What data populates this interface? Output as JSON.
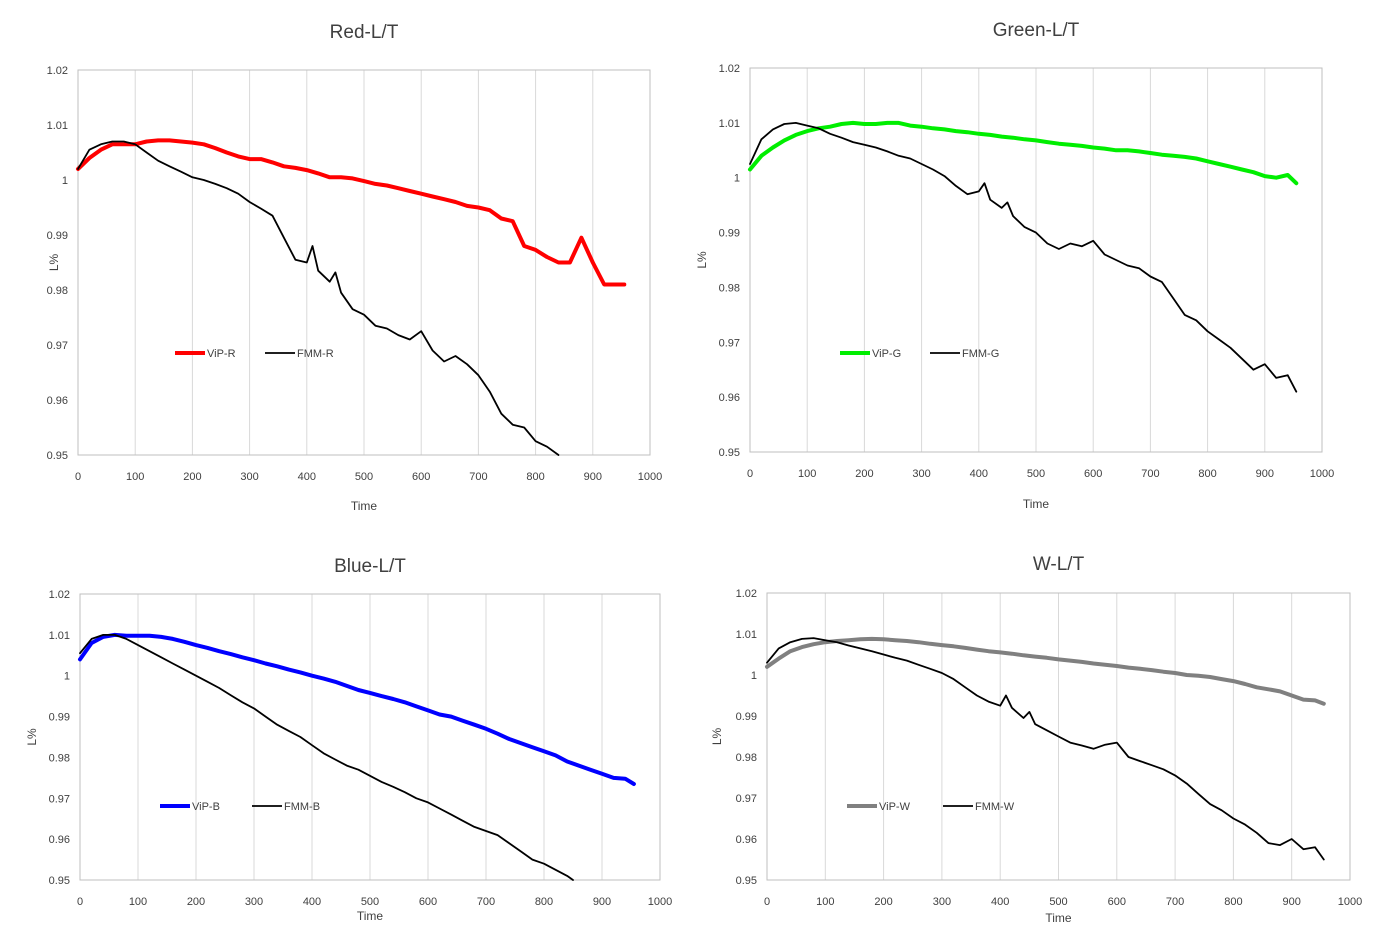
{
  "chart_data": [
    {
      "type": "line",
      "title": "Red-L/T",
      "xlabel": "Time",
      "ylabel": "L%",
      "xlim": [
        0,
        1000
      ],
      "ylim": [
        0.95,
        1.02
      ],
      "x_ticks": [
        "0",
        "100",
        "200",
        "300",
        "400",
        "500",
        "600",
        "700",
        "800",
        "900",
        "1000"
      ],
      "y_ticks": [
        "0.95",
        "0.96",
        "0.97",
        "0.98",
        "0.99",
        "1",
        "1.01",
        "1.02"
      ],
      "grid": "vertical",
      "legend": "inside-lower-left",
      "series": [
        {
          "name": "ViP-R",
          "color": "#ff0000",
          "width": "thick",
          "x": [
            0,
            20,
            40,
            60,
            80,
            100,
            120,
            140,
            160,
            180,
            200,
            220,
            240,
            260,
            280,
            300,
            320,
            340,
            360,
            380,
            400,
            420,
            440,
            460,
            480,
            500,
            520,
            540,
            560,
            580,
            600,
            620,
            640,
            660,
            680,
            700,
            720,
            740,
            760,
            780,
            800,
            820,
            840,
            860,
            880,
            900,
            920,
            940,
            955
          ],
          "y": [
            1.002,
            1.004,
            1.0055,
            1.0065,
            1.0065,
            1.0065,
            1.007,
            1.0072,
            1.0072,
            1.007,
            1.0068,
            1.0065,
            1.0058,
            1.005,
            1.0043,
            1.0038,
            1.0038,
            1.0032,
            1.0025,
            1.0022,
            1.0018,
            1.0012,
            1.0005,
            1.0005,
            1.0003,
            0.9998,
            0.9993,
            0.999,
            0.9985,
            0.998,
            0.9975,
            0.997,
            0.9965,
            0.996,
            0.9953,
            0.995,
            0.9945,
            0.993,
            0.9925,
            0.988,
            0.9873,
            0.986,
            0.985,
            0.985,
            0.9895,
            0.985,
            0.981,
            0.981,
            0.981
          ]
        },
        {
          "name": "FMM-R",
          "color": "#000000",
          "width": "thin",
          "x": [
            0,
            20,
            40,
            60,
            80,
            100,
            120,
            140,
            160,
            180,
            200,
            220,
            240,
            260,
            280,
            300,
            320,
            340,
            360,
            380,
            400,
            410,
            420,
            440,
            450,
            460,
            480,
            500,
            520,
            540,
            560,
            580,
            600,
            620,
            640,
            660,
            680,
            700,
            720,
            740,
            760,
            780,
            800,
            820,
            840
          ],
          "y": [
            1.002,
            1.0055,
            1.0065,
            1.007,
            1.007,
            1.0065,
            1.005,
            1.0035,
            1.0025,
            1.0015,
            1.0005,
            1.0,
            0.9993,
            0.9985,
            0.9975,
            0.996,
            0.9948,
            0.9935,
            0.9895,
            0.9855,
            0.985,
            0.988,
            0.9835,
            0.9815,
            0.9832,
            0.9795,
            0.9765,
            0.9755,
            0.9735,
            0.973,
            0.9718,
            0.971,
            0.9725,
            0.969,
            0.967,
            0.968,
            0.9665,
            0.9645,
            0.9615,
            0.9575,
            0.9555,
            0.955,
            0.9525,
            0.9515,
            0.95
          ]
        }
      ]
    },
    {
      "type": "line",
      "title": "Green-L/T",
      "xlabel": "Time",
      "ylabel": "L%",
      "xlim": [
        0,
        1000
      ],
      "ylim": [
        0.95,
        1.02
      ],
      "x_ticks": [
        "0",
        "100",
        "200",
        "300",
        "400",
        "500",
        "600",
        "700",
        "800",
        "900",
        "1000"
      ],
      "y_ticks": [
        "0.95",
        "0.96",
        "0.97",
        "0.98",
        "0.99",
        "1",
        "1.01",
        "1.02"
      ],
      "grid": "vertical",
      "legend": "inside-lower-left",
      "series": [
        {
          "name": "ViP-G",
          "color": "#00ee00",
          "width": "thick",
          "x": [
            0,
            20,
            40,
            60,
            80,
            100,
            120,
            140,
            160,
            180,
            200,
            220,
            240,
            260,
            280,
            300,
            320,
            340,
            360,
            380,
            400,
            420,
            440,
            460,
            480,
            500,
            520,
            540,
            560,
            580,
            600,
            620,
            640,
            660,
            680,
            700,
            720,
            740,
            760,
            780,
            800,
            820,
            840,
            860,
            880,
            900,
            920,
            940,
            955
          ],
          "y": [
            1.0015,
            1.004,
            1.0055,
            1.0068,
            1.0078,
            1.0085,
            1.009,
            1.0093,
            1.0098,
            1.01,
            1.0098,
            1.0098,
            1.01,
            1.01,
            1.0095,
            1.0093,
            1.009,
            1.0088,
            1.0085,
            1.0083,
            1.008,
            1.0078,
            1.0075,
            1.0073,
            1.007,
            1.0068,
            1.0065,
            1.0062,
            1.006,
            1.0058,
            1.0055,
            1.0053,
            1.005,
            1.005,
            1.0048,
            1.0045,
            1.0042,
            1.004,
            1.0038,
            1.0035,
            1.003,
            1.0025,
            1.002,
            1.0015,
            1.001,
            1.0003,
            1.0,
            1.0005,
            0.999
          ]
        },
        {
          "name": "FMM-G",
          "color": "#000000",
          "width": "thin",
          "x": [
            0,
            20,
            40,
            60,
            80,
            100,
            120,
            140,
            160,
            180,
            200,
            220,
            240,
            260,
            280,
            300,
            320,
            340,
            360,
            380,
            400,
            410,
            420,
            440,
            450,
            460,
            480,
            500,
            520,
            540,
            560,
            580,
            600,
            620,
            640,
            660,
            680,
            700,
            720,
            740,
            760,
            780,
            800,
            820,
            840,
            860,
            880,
            900,
            920,
            940,
            955
          ],
          "y": [
            1.0025,
            1.007,
            1.0088,
            1.0098,
            1.01,
            1.0095,
            1.009,
            1.008,
            1.0073,
            1.0065,
            1.006,
            1.0055,
            1.0048,
            1.004,
            1.0035,
            1.0025,
            1.0015,
            1.0003,
            0.9985,
            0.997,
            0.9975,
            0.999,
            0.996,
            0.9945,
            0.9955,
            0.993,
            0.991,
            0.99,
            0.988,
            0.987,
            0.988,
            0.9875,
            0.9885,
            0.986,
            0.985,
            0.984,
            0.9835,
            0.982,
            0.981,
            0.978,
            0.975,
            0.974,
            0.972,
            0.9705,
            0.969,
            0.967,
            0.965,
            0.966,
            0.9635,
            0.964,
            0.961
          ]
        }
      ]
    },
    {
      "type": "line",
      "title": "Blue-L/T",
      "xlabel": "Time",
      "ylabel": "L%",
      "xlim": [
        0,
        1000
      ],
      "ylim": [
        0.95,
        1.02
      ],
      "x_ticks": [
        "0",
        "100",
        "200",
        "300",
        "400",
        "500",
        "600",
        "700",
        "800",
        "900",
        "1000"
      ],
      "y_ticks": [
        "0.95",
        "0.96",
        "0.97",
        "0.98",
        "0.99",
        "1",
        "1.01",
        "1.02"
      ],
      "grid": "vertical",
      "legend": "inside-lower-left",
      "series": [
        {
          "name": "ViP-B",
          "color": "#0000ff",
          "width": "thick",
          "x": [
            0,
            20,
            40,
            60,
            80,
            100,
            120,
            140,
            160,
            180,
            200,
            220,
            240,
            260,
            280,
            300,
            320,
            340,
            360,
            380,
            400,
            420,
            440,
            460,
            480,
            500,
            520,
            540,
            560,
            580,
            600,
            620,
            640,
            660,
            680,
            700,
            720,
            740,
            760,
            780,
            800,
            820,
            840,
            860,
            880,
            900,
            920,
            940,
            955
          ],
          "y": [
            1.004,
            1.008,
            1.0095,
            1.01,
            1.0098,
            1.0098,
            1.0098,
            1.0095,
            1.009,
            1.0083,
            1.0075,
            1.0068,
            1.006,
            1.0053,
            1.0045,
            1.0038,
            1.003,
            1.0023,
            1.0015,
            1.0008,
            1.0,
            0.9993,
            0.9985,
            0.9975,
            0.9965,
            0.9958,
            0.995,
            0.9943,
            0.9935,
            0.9925,
            0.9915,
            0.9905,
            0.99,
            0.989,
            0.988,
            0.987,
            0.9858,
            0.9845,
            0.9835,
            0.9825,
            0.9815,
            0.9805,
            0.979,
            0.978,
            0.977,
            0.976,
            0.975,
            0.9748,
            0.9735
          ]
        },
        {
          "name": "FMM-B",
          "color": "#000000",
          "width": "thin",
          "x": [
            0,
            20,
            40,
            60,
            80,
            100,
            120,
            140,
            160,
            180,
            200,
            220,
            240,
            260,
            280,
            300,
            320,
            340,
            360,
            380,
            400,
            420,
            440,
            460,
            480,
            500,
            520,
            540,
            560,
            580,
            600,
            620,
            640,
            660,
            680,
            700,
            720,
            740,
            760,
            780,
            800,
            820,
            840,
            850
          ],
          "y": [
            1.0055,
            1.009,
            1.01,
            1.01,
            1.009,
            1.0075,
            1.006,
            1.0045,
            1.003,
            1.0015,
            1.0,
            0.9985,
            0.997,
            0.9952,
            0.9935,
            0.992,
            0.99,
            0.988,
            0.9865,
            0.985,
            0.983,
            0.981,
            0.9795,
            0.978,
            0.977,
            0.9755,
            0.974,
            0.9728,
            0.9715,
            0.97,
            0.969,
            0.9675,
            0.966,
            0.9645,
            0.963,
            0.962,
            0.961,
            0.959,
            0.957,
            0.955,
            0.954,
            0.9525,
            0.951,
            0.95
          ]
        }
      ]
    },
    {
      "type": "line",
      "title": "W-L/T",
      "xlabel": "Time",
      "ylabel": "L%",
      "xlim": [
        0,
        1000
      ],
      "ylim": [
        0.95,
        1.02
      ],
      "x_ticks": [
        "0",
        "100",
        "200",
        "300",
        "400",
        "500",
        "600",
        "700",
        "800",
        "900",
        "1000"
      ],
      "y_ticks": [
        "0.95",
        "0.96",
        "0.97",
        "0.98",
        "0.99",
        "1",
        "1.01",
        "1.02"
      ],
      "grid": "vertical",
      "legend": "inside-lower-left",
      "series": [
        {
          "name": "ViP-W",
          "color": "#808080",
          "width": "thick",
          "x": [
            0,
            20,
            40,
            60,
            80,
            100,
            120,
            140,
            160,
            180,
            200,
            220,
            240,
            260,
            280,
            300,
            320,
            340,
            360,
            380,
            400,
            420,
            440,
            460,
            480,
            500,
            520,
            540,
            560,
            580,
            600,
            620,
            640,
            660,
            680,
            700,
            720,
            740,
            760,
            780,
            800,
            820,
            840,
            860,
            880,
            900,
            920,
            940,
            955
          ],
          "y": [
            1.002,
            1.004,
            1.0058,
            1.0068,
            1.0075,
            1.008,
            1.0083,
            1.0085,
            1.0087,
            1.0088,
            1.0087,
            1.0085,
            1.0083,
            1.008,
            1.0076,
            1.0073,
            1.007,
            1.0066,
            1.0062,
            1.0058,
            1.0055,
            1.0052,
            1.0048,
            1.0045,
            1.0042,
            1.0038,
            1.0035,
            1.0032,
            1.0028,
            1.0025,
            1.0022,
            1.0018,
            1.0015,
            1.0012,
            1.0008,
            1.0005,
            1.0,
            0.9998,
            0.9995,
            0.999,
            0.9985,
            0.9978,
            0.997,
            0.9965,
            0.996,
            0.995,
            0.994,
            0.9938,
            0.993
          ]
        },
        {
          "name": "FMM-W",
          "color": "#000000",
          "width": "thin",
          "x": [
            0,
            20,
            40,
            60,
            80,
            100,
            120,
            140,
            160,
            180,
            200,
            220,
            240,
            260,
            280,
            300,
            320,
            340,
            360,
            380,
            400,
            410,
            420,
            440,
            450,
            460,
            480,
            500,
            520,
            540,
            560,
            580,
            600,
            620,
            640,
            660,
            680,
            700,
            720,
            740,
            760,
            780,
            800,
            820,
            840,
            860,
            880,
            900,
            920,
            940,
            955
          ],
          "y": [
            1.003,
            1.0065,
            1.008,
            1.0088,
            1.009,
            1.0085,
            1.008,
            1.0072,
            1.0065,
            1.0058,
            1.005,
            1.0042,
            1.0035,
            1.0025,
            1.0015,
            1.0005,
            0.999,
            0.997,
            0.995,
            0.9935,
            0.9925,
            0.995,
            0.992,
            0.9895,
            0.991,
            0.988,
            0.9865,
            0.985,
            0.9835,
            0.9828,
            0.982,
            0.983,
            0.9835,
            0.98,
            0.979,
            0.978,
            0.977,
            0.9755,
            0.9735,
            0.971,
            0.9685,
            0.967,
            0.965,
            0.9635,
            0.9615,
            0.959,
            0.9585,
            0.96,
            0.9575,
            0.958,
            0.955
          ]
        }
      ]
    }
  ]
}
